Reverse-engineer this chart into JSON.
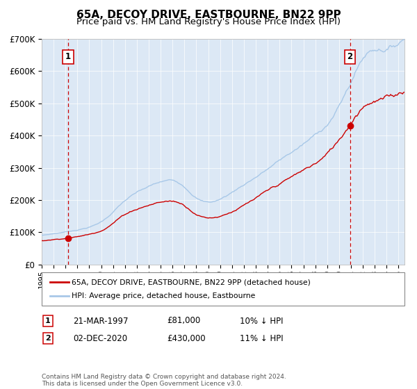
{
  "title": "65A, DECOY DRIVE, EASTBOURNE, BN22 9PP",
  "subtitle": "Price paid vs. HM Land Registry's House Price Index (HPI)",
  "legend_line1": "65A, DECOY DRIVE, EASTBOURNE, BN22 9PP (detached house)",
  "legend_line2": "HPI: Average price, detached house, Eastbourne",
  "annotation1_date": "21-MAR-1997",
  "annotation1_price": "£81,000",
  "annotation1_hpi": "10% ↓ HPI",
  "annotation2_date": "02-DEC-2020",
  "annotation2_price": "£430,000",
  "annotation2_hpi": "11% ↓ HPI",
  "footer": "Contains HM Land Registry data © Crown copyright and database right 2024.\nThis data is licensed under the Open Government Licence v3.0.",
  "hpi_color": "#a8c8e8",
  "price_color": "#cc0000",
  "vline_color": "#cc0000",
  "plot_bg": "#dce8f5",
  "grid_color": "#ffffff",
  "ylim": [
    0,
    700000
  ],
  "yticks": [
    0,
    100000,
    200000,
    300000,
    400000,
    500000,
    600000,
    700000
  ],
  "xlim_start": 1995.0,
  "xlim_end": 2025.5,
  "sale1_t": 1997.22,
  "sale1_val": 81000,
  "sale2_t": 2020.92,
  "sale2_val": 430000
}
